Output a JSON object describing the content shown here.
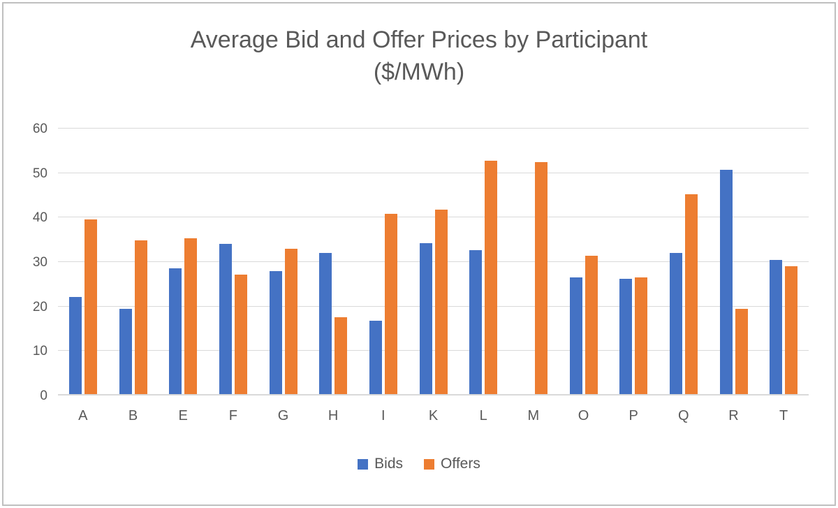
{
  "chart_data": {
    "type": "bar",
    "title": "Average Bid and Offer Prices by Participant",
    "subtitle": "($/MWh)",
    "categories": [
      "A",
      "B",
      "E",
      "F",
      "G",
      "H",
      "I",
      "K",
      "L",
      "M",
      "O",
      "P",
      "Q",
      "R",
      "T"
    ],
    "series": [
      {
        "name": "Bids",
        "color": "#4472C4",
        "values": [
          21.9,
          19.2,
          28.2,
          33.7,
          27.6,
          31.8,
          16.5,
          34.0,
          32.4,
          0,
          26.2,
          25.9,
          31.8,
          50.4,
          30.2
        ]
      },
      {
        "name": "Offers",
        "color": "#ED7D31",
        "values": [
          39.3,
          34.5,
          35.0,
          26.9,
          32.7,
          17.3,
          40.6,
          41.5,
          52.4,
          52.1,
          31.1,
          26.2,
          45.0,
          19.2,
          28.8
        ]
      }
    ],
    "ylabel": "",
    "xlabel": "",
    "ylim": [
      0,
      60
    ],
    "ytick_step": 10,
    "grid": true,
    "legend_position": "bottom"
  },
  "colors": {
    "text": "#595959",
    "gridline": "#D9D9D9",
    "chart_border": "#BFBFBF"
  }
}
